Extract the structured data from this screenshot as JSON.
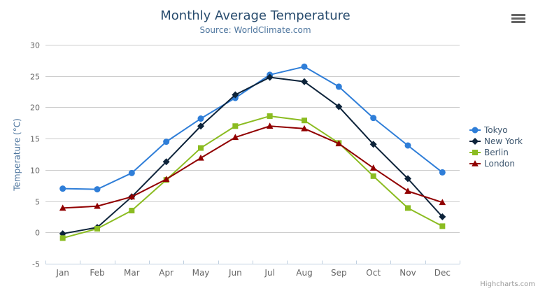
{
  "header": {
    "title": "Monthly Average Temperature",
    "subtitle": "Source: WorldClimate.com"
  },
  "credits": {
    "label": "Highcharts.com"
  },
  "colors": {
    "title": "#274b6d",
    "subtitle": "#4d759e",
    "axis_title": "#4d759e",
    "tick_labels": "#666666",
    "legend_text": "#3e576f",
    "gridline": "#cccccc",
    "axis_line": "#c0d0e0",
    "credits": "#999999",
    "export_icon": "#666666"
  },
  "chart_data": {
    "type": "line",
    "title": "Monthly Average Temperature",
    "subtitle": "Source: WorldClimate.com",
    "xlabel": "",
    "ylabel": "Temperature (°C)",
    "categories": [
      "Jan",
      "Feb",
      "Mar",
      "Apr",
      "May",
      "Jun",
      "Jul",
      "Aug",
      "Sep",
      "Oct",
      "Nov",
      "Dec"
    ],
    "ylim": [
      -5,
      30
    ],
    "ytick_interval": 5,
    "yticks": [
      -5,
      0,
      5,
      10,
      15,
      20,
      25,
      30
    ],
    "grid": true,
    "legend_position": "right",
    "series": [
      {
        "name": "Tokyo",
        "color": "#2f7ed8",
        "marker": "circle",
        "values": [
          7.0,
          6.9,
          9.5,
          14.5,
          18.2,
          21.5,
          25.2,
          26.5,
          23.3,
          18.3,
          13.9,
          9.6
        ]
      },
      {
        "name": "New York",
        "color": "#0d233a",
        "marker": "diamond",
        "values": [
          -0.2,
          0.8,
          5.7,
          11.3,
          17.0,
          22.0,
          24.8,
          24.1,
          20.1,
          14.1,
          8.6,
          2.5
        ]
      },
      {
        "name": "Berlin",
        "color": "#8bbc21",
        "marker": "square",
        "values": [
          -0.9,
          0.6,
          3.5,
          8.4,
          13.5,
          17.0,
          18.6,
          17.9,
          14.3,
          9.0,
          3.9,
          1.0
        ]
      },
      {
        "name": "London",
        "color": "#910000",
        "marker": "triangle",
        "values": [
          3.9,
          4.2,
          5.7,
          8.5,
          11.9,
          15.2,
          17.0,
          16.6,
          14.2,
          10.3,
          6.6,
          4.8
        ]
      }
    ]
  }
}
